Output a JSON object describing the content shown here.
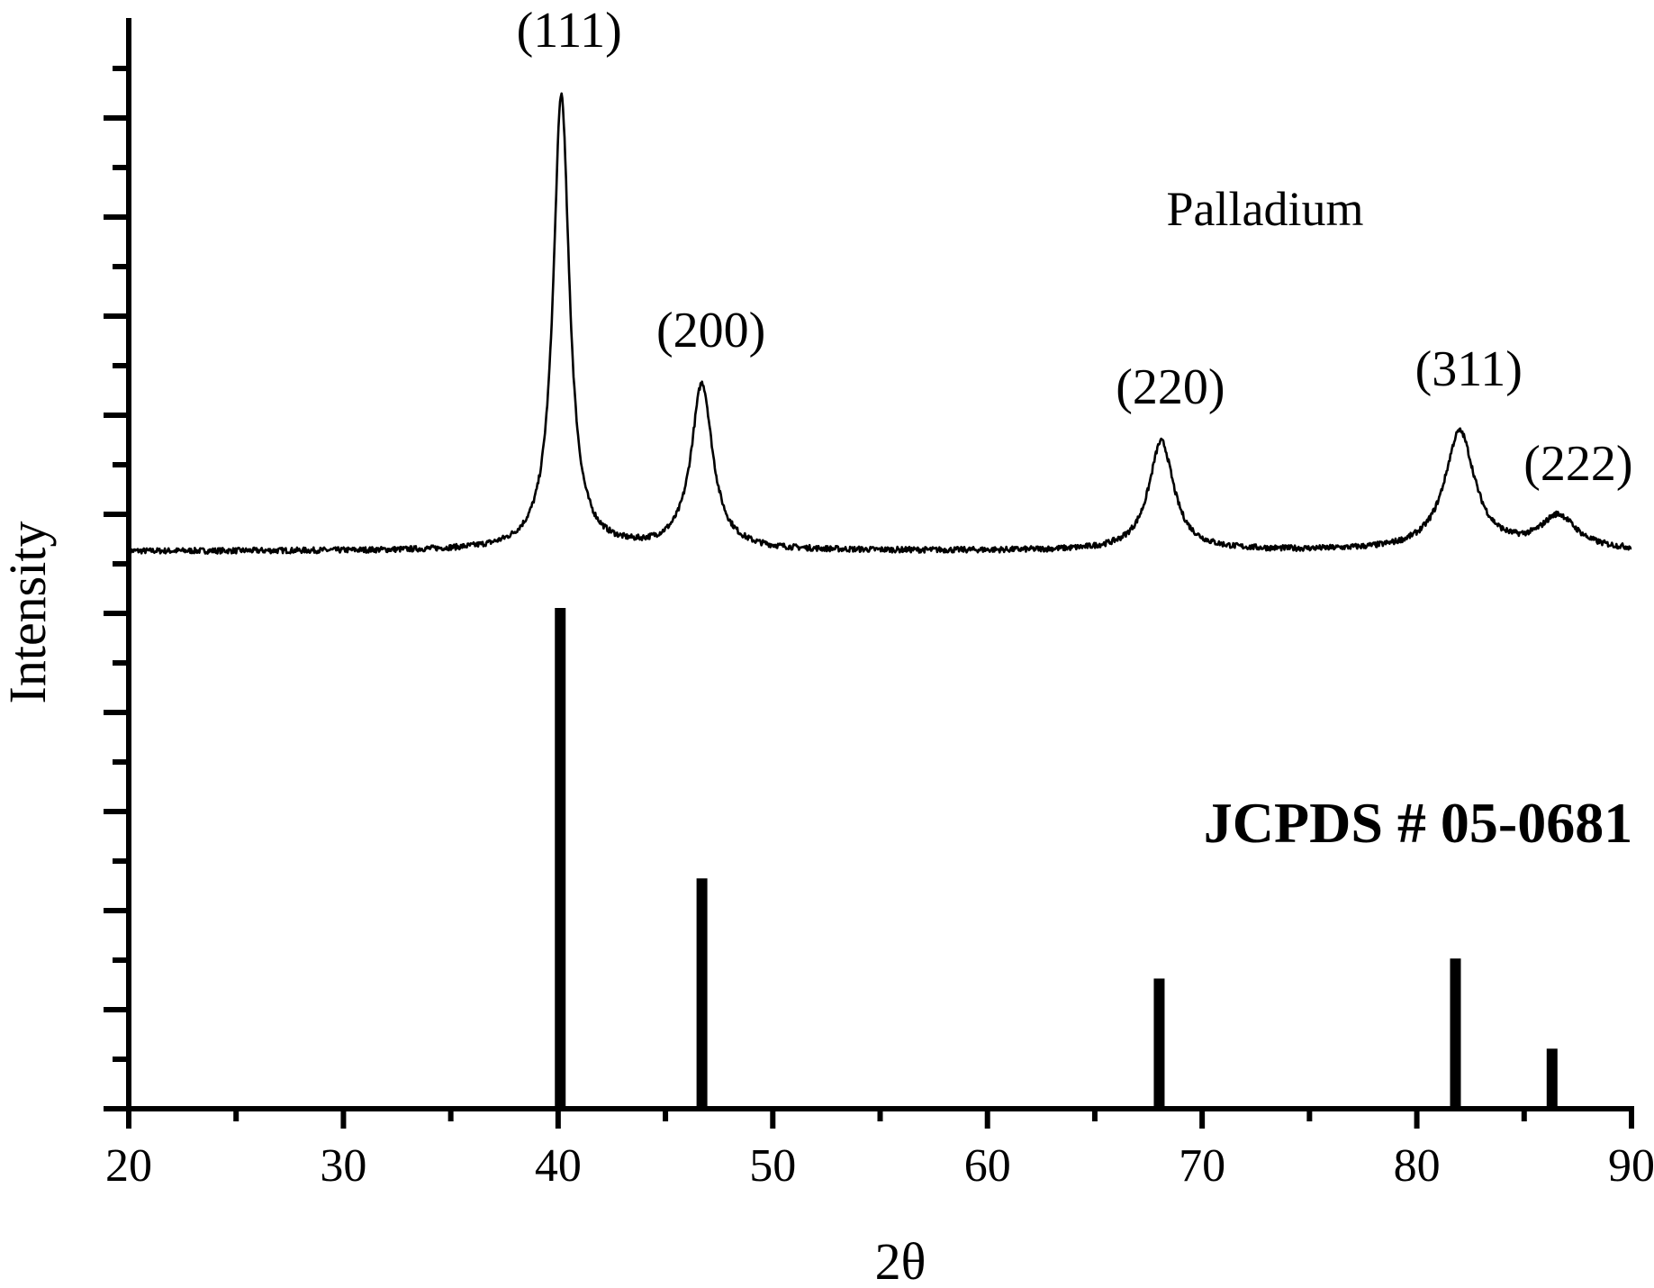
{
  "chart_data": {
    "type": "line",
    "xlabel": "2θ",
    "ylabel": "Intensity",
    "xlim": [
      20,
      90
    ],
    "x_ticks": [
      "20",
      "30",
      "40",
      "50",
      "60",
      "70",
      "80",
      "90"
    ],
    "y_tick_labels_shown": false,
    "sample_label": "Palladium",
    "reference_label": "JCPDS # 05-0681",
    "peak_labels": [
      {
        "x": 40.1,
        "text": "(111)"
      },
      {
        "x": 46.7,
        "text": "(200)"
      },
      {
        "x": 68.1,
        "text": "(220)"
      },
      {
        "x": 82.0,
        "text": "(311)"
      },
      {
        "x": 86.6,
        "text": "(222)"
      }
    ],
    "sample_pattern": {
      "baseline": 0.0,
      "peaks": [
        {
          "x": 40.15,
          "height": 0.96
        },
        {
          "x": 46.7,
          "height": 0.35
        },
        {
          "x": 68.1,
          "height": 0.23
        },
        {
          "x": 82.0,
          "height": 0.25
        },
        {
          "x": 86.6,
          "height": 0.07
        }
      ],
      "y_range_unit": "relative"
    },
    "reference_bars": {
      "x": [
        40.1,
        46.7,
        68.0,
        81.8,
        86.3
      ],
      "values": [
        100,
        46,
        26,
        30,
        12
      ]
    },
    "colors": {
      "line": "#000000",
      "bars": "#000000",
      "background": "#ffffff"
    }
  }
}
